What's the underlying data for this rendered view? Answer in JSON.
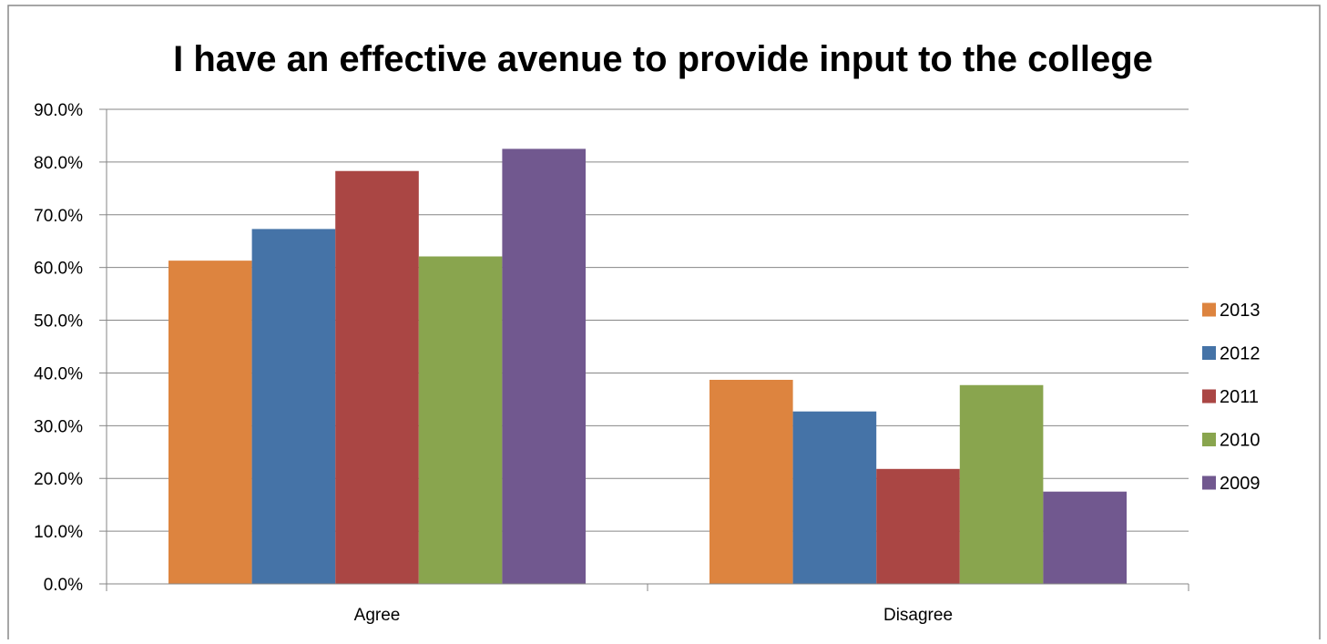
{
  "chart_data": {
    "type": "bar",
    "title": "I have an effective avenue to provide input to the college",
    "categories": [
      "Agree",
      "Disagree"
    ],
    "series": [
      {
        "name": "2013",
        "color": "#DD843F",
        "values": [
          61.3,
          38.7
        ]
      },
      {
        "name": "2012",
        "color": "#4573A7",
        "values": [
          67.3,
          32.7
        ]
      },
      {
        "name": "2011",
        "color": "#AA4644",
        "values": [
          78.3,
          21.8
        ]
      },
      {
        "name": "2010",
        "color": "#89A54E",
        "values": [
          62.1,
          37.7
        ]
      },
      {
        "name": "2009",
        "color": "#71588F",
        "values": [
          82.5,
          17.5
        ]
      }
    ],
    "ylim": [
      0,
      90
    ],
    "yticks": [
      "0.0%",
      "10.0%",
      "20.0%",
      "30.0%",
      "40.0%",
      "50.0%",
      "60.0%",
      "70.0%",
      "80.0%",
      "90.0%"
    ],
    "grid": true,
    "legend": "right"
  }
}
